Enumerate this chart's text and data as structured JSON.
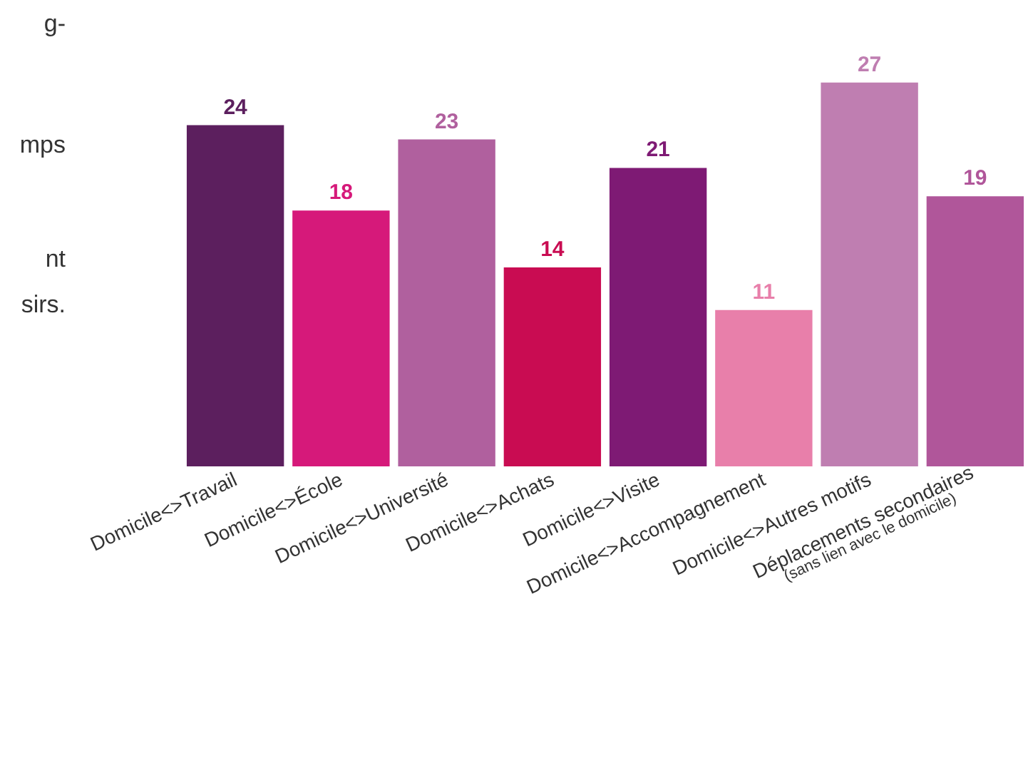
{
  "chart_data": {
    "type": "bar",
    "categories": [
      "Domicile<>Travail",
      "Domicile<>École",
      "Domicile<>Université",
      "Domicile<>Achats",
      "Domicile<>Visite",
      "Domicile<>Accompagnement",
      "Domicile<>Autres motifs",
      "Déplacements secondaires\n(sans lien avec le domicile)"
    ],
    "values": [
      24,
      18,
      23,
      14,
      21,
      11,
      27,
      19
    ],
    "colors": [
      "#5c1f5e",
      "#d6197a",
      "#b0609e",
      "#c90c52",
      "#7e1a74",
      "#e87faa",
      "#bf7eb1",
      "#b0569a"
    ],
    "data_labels": true,
    "annotations": [
      "g-",
      "mps",
      "nt",
      "sirs."
    ]
  }
}
